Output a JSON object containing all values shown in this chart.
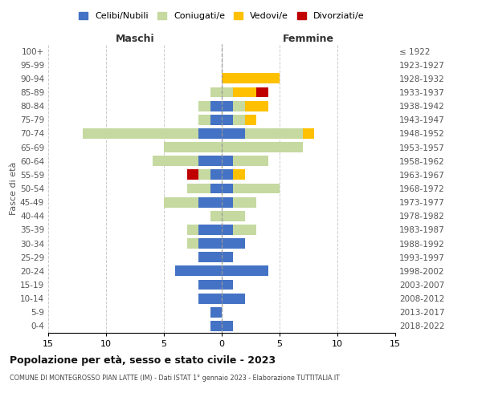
{
  "age_groups": [
    "0-4",
    "5-9",
    "10-14",
    "15-19",
    "20-24",
    "25-29",
    "30-34",
    "35-39",
    "40-44",
    "45-49",
    "50-54",
    "55-59",
    "60-64",
    "65-69",
    "70-74",
    "75-79",
    "80-84",
    "85-89",
    "90-94",
    "95-99",
    "100+"
  ],
  "birth_years": [
    "2018-2022",
    "2013-2017",
    "2008-2012",
    "2003-2007",
    "1998-2002",
    "1993-1997",
    "1988-1992",
    "1983-1987",
    "1978-1982",
    "1973-1977",
    "1968-1972",
    "1963-1967",
    "1958-1962",
    "1953-1957",
    "1948-1952",
    "1943-1947",
    "1938-1942",
    "1933-1937",
    "1928-1932",
    "1923-1927",
    "≤ 1922"
  ],
  "colors": {
    "celibe": "#4472c4",
    "coniugato": "#c5d9a0",
    "vedovo": "#ffc000",
    "divorziato": "#c00000"
  },
  "maschi": {
    "celibe": [
      1,
      1,
      2,
      2,
      4,
      2,
      2,
      2,
      0,
      2,
      1,
      1,
      2,
      0,
      2,
      1,
      1,
      0,
      0,
      0,
      0
    ],
    "coniugato": [
      0,
      0,
      0,
      0,
      0,
      0,
      1,
      1,
      1,
      3,
      2,
      1,
      4,
      5,
      10,
      1,
      1,
      1,
      0,
      0,
      0
    ],
    "vedovo": [
      0,
      0,
      0,
      0,
      0,
      0,
      0,
      0,
      0,
      0,
      0,
      0,
      0,
      0,
      0,
      0,
      0,
      0,
      0,
      0,
      0
    ],
    "divorziato": [
      0,
      0,
      0,
      0,
      0,
      0,
      0,
      0,
      0,
      0,
      0,
      1,
      0,
      0,
      0,
      0,
      0,
      0,
      0,
      0,
      0
    ]
  },
  "femmine": {
    "celibe": [
      1,
      0,
      2,
      1,
      4,
      1,
      2,
      1,
      0,
      1,
      1,
      1,
      1,
      0,
      2,
      1,
      1,
      0,
      0,
      0,
      0
    ],
    "coniugato": [
      0,
      0,
      0,
      0,
      0,
      0,
      0,
      2,
      2,
      2,
      4,
      0,
      3,
      7,
      5,
      1,
      1,
      1,
      0,
      0,
      0
    ],
    "vedovo": [
      0,
      0,
      0,
      0,
      0,
      0,
      0,
      0,
      0,
      0,
      0,
      1,
      0,
      0,
      1,
      1,
      2,
      2,
      5,
      0,
      0
    ],
    "divorziato": [
      0,
      0,
      0,
      0,
      0,
      0,
      0,
      0,
      0,
      0,
      0,
      0,
      0,
      0,
      0,
      0,
      0,
      1,
      0,
      0,
      0
    ]
  },
  "xlim": 15,
  "title_main": "Popolazione per età, sesso e stato civile - 2023",
  "title_sub": "COMUNE DI MONTEGROSSO PIAN LATTE (IM) - Dati ISTAT 1° gennaio 2023 - Elaborazione TUTTITALIA.IT",
  "legend_labels": [
    "Celibi/Nubili",
    "Coniugati/e",
    "Vedovi/e",
    "Divorziati/e"
  ],
  "ylabel_left": "Fasce di età",
  "xlabel_left": "Maschi",
  "xlabel_right": "Femmine",
  "background_color": "#ffffff",
  "grid_color": "#cccccc"
}
